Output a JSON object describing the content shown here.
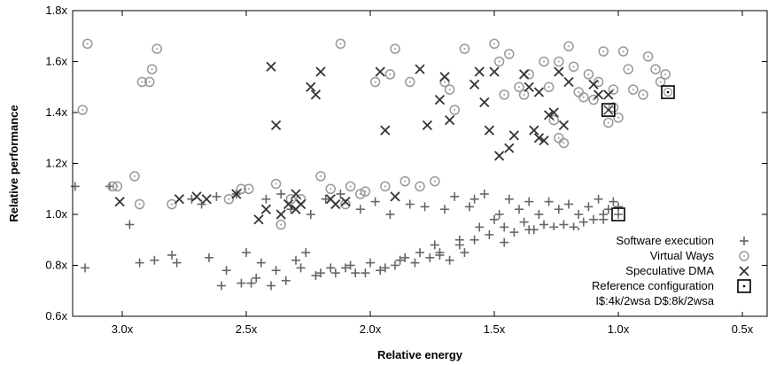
{
  "chart_data": {
    "type": "scatter",
    "title": "",
    "xlabel": "Relative energy",
    "ylabel": "Relative performance",
    "x_reversed": true,
    "xlim": [
      3.2,
      0.4
    ],
    "ylim": [
      0.6,
      1.8
    ],
    "x_ticks": [
      {
        "value": 3.0,
        "label": "3.0x"
      },
      {
        "value": 2.5,
        "label": "2.5x"
      },
      {
        "value": 2.0,
        "label": "2.0x"
      },
      {
        "value": 1.5,
        "label": "1.5x"
      },
      {
        "value": 1.0,
        "label": "1.0x"
      },
      {
        "value": 0.5,
        "label": "0.5x"
      }
    ],
    "y_ticks": [
      {
        "value": 0.6,
        "label": "0.6x"
      },
      {
        "value": 0.8,
        "label": "0.8x"
      },
      {
        "value": 1.0,
        "label": "1.0x"
      },
      {
        "value": 1.2,
        "label": "1.2x"
      },
      {
        "value": 1.4,
        "label": "1.4x"
      },
      {
        "value": 1.6,
        "label": "1.6x"
      },
      {
        "value": 1.8,
        "label": "1.8x"
      }
    ],
    "grid": false,
    "legend_position": "bottom-right",
    "legend_note": "I$:4k/2wsa D$:8k/2wsa",
    "series": [
      {
        "name": "Software execution",
        "marker": "plus",
        "color": "#666666",
        "points": [
          [
            3.19,
            1.11
          ],
          [
            3.15,
            0.79
          ],
          [
            3.05,
            1.11
          ],
          [
            2.97,
            0.96
          ],
          [
            2.93,
            0.81
          ],
          [
            2.87,
            0.82
          ],
          [
            2.8,
            0.84
          ],
          [
            2.78,
            0.81
          ],
          [
            2.72,
            1.06
          ],
          [
            2.68,
            1.04
          ],
          [
            2.65,
            0.83
          ],
          [
            2.62,
            1.07
          ],
          [
            2.6,
            0.72
          ],
          [
            2.58,
            0.78
          ],
          [
            2.54,
            1.08
          ],
          [
            2.52,
            0.73
          ],
          [
            2.5,
            0.85
          ],
          [
            2.48,
            0.73
          ],
          [
            2.46,
            0.75
          ],
          [
            2.44,
            0.81
          ],
          [
            2.42,
            1.06
          ],
          [
            2.4,
            0.72
          ],
          [
            2.38,
            0.78
          ],
          [
            2.36,
            1.08
          ],
          [
            2.34,
            0.74
          ],
          [
            2.32,
            1.02
          ],
          [
            2.3,
            0.82
          ],
          [
            2.28,
            0.79
          ],
          [
            2.26,
            0.85
          ],
          [
            2.24,
            1.0
          ],
          [
            2.22,
            0.76
          ],
          [
            2.2,
            0.77
          ],
          [
            2.18,
            1.06
          ],
          [
            2.16,
            0.79
          ],
          [
            2.14,
            0.77
          ],
          [
            2.12,
            1.08
          ],
          [
            2.1,
            0.79
          ],
          [
            2.08,
            0.8
          ],
          [
            2.06,
            0.77
          ],
          [
            2.04,
            1.02
          ],
          [
            2.02,
            0.77
          ],
          [
            2.0,
            0.81
          ],
          [
            1.98,
            1.05
          ],
          [
            1.96,
            0.78
          ],
          [
            1.94,
            0.79
          ],
          [
            1.92,
            1.0
          ],
          [
            1.9,
            0.8
          ],
          [
            1.88,
            0.82
          ],
          [
            1.86,
            0.83
          ],
          [
            1.84,
            1.04
          ],
          [
            1.82,
            0.81
          ],
          [
            1.8,
            0.85
          ],
          [
            1.78,
            1.03
          ],
          [
            1.76,
            0.83
          ],
          [
            1.74,
            0.88
          ],
          [
            1.72,
            0.84
          ],
          [
            1.7,
            1.02
          ],
          [
            1.68,
            0.82
          ],
          [
            1.66,
            1.07
          ],
          [
            1.64,
            0.88
          ],
          [
            1.62,
            0.85
          ],
          [
            1.6,
            1.03
          ],
          [
            1.58,
            0.9
          ],
          [
            1.56,
            0.95
          ],
          [
            1.54,
            1.08
          ],
          [
            1.52,
            0.92
          ],
          [
            1.5,
            0.98
          ],
          [
            1.48,
            1.0
          ],
          [
            1.46,
            0.95
          ],
          [
            1.44,
            1.06
          ],
          [
            1.42,
            0.93
          ],
          [
            1.4,
            1.02
          ],
          [
            1.38,
            0.97
          ],
          [
            1.36,
            1.05
          ],
          [
            1.34,
            0.94
          ],
          [
            1.32,
            1.0
          ],
          [
            1.3,
            0.96
          ],
          [
            1.28,
            1.05
          ],
          [
            1.26,
            0.95
          ],
          [
            1.24,
            1.02
          ],
          [
            1.22,
            0.96
          ],
          [
            1.2,
            1.04
          ],
          [
            1.18,
            0.95
          ],
          [
            1.16,
            1.0
          ],
          [
            1.14,
            0.97
          ],
          [
            1.12,
            1.03
          ],
          [
            1.1,
            0.98
          ],
          [
            1.08,
            1.06
          ],
          [
            1.06,
            1.0
          ],
          [
            1.04,
            1.02
          ],
          [
            1.02,
            1.05
          ],
          [
            1.0,
            1.03
          ],
          [
            1.72,
            0.85
          ],
          [
            1.64,
            0.9
          ],
          [
            1.58,
            1.06
          ],
          [
            1.46,
            0.89
          ],
          [
            1.36,
            0.94
          ],
          [
            1.26,
            0.9
          ],
          [
            1.16,
            0.93
          ],
          [
            1.06,
            0.98
          ]
        ]
      },
      {
        "name": "Virtual Ways",
        "marker": "circle-dot",
        "color": "#999999",
        "points": [
          [
            3.16,
            1.41
          ],
          [
            3.14,
            1.67
          ],
          [
            3.04,
            1.11
          ],
          [
            3.02,
            1.11
          ],
          [
            2.95,
            1.15
          ],
          [
            2.93,
            1.04
          ],
          [
            2.92,
            1.52
          ],
          [
            2.89,
            1.52
          ],
          [
            2.88,
            1.57
          ],
          [
            2.86,
            1.65
          ],
          [
            2.8,
            1.04
          ],
          [
            2.57,
            1.06
          ],
          [
            2.52,
            1.1
          ],
          [
            2.49,
            1.1
          ],
          [
            2.38,
            1.12
          ],
          [
            2.36,
            0.96
          ],
          [
            2.32,
            1.06
          ],
          [
            2.28,
            1.06
          ],
          [
            2.2,
            1.15
          ],
          [
            2.16,
            1.1
          ],
          [
            2.12,
            1.67
          ],
          [
            2.1,
            1.04
          ],
          [
            2.08,
            1.11
          ],
          [
            2.04,
            1.08
          ],
          [
            2.02,
            1.09
          ],
          [
            1.98,
            1.52
          ],
          [
            1.94,
            1.11
          ],
          [
            1.92,
            1.55
          ],
          [
            1.9,
            1.65
          ],
          [
            1.86,
            1.13
          ],
          [
            1.84,
            1.52
          ],
          [
            1.8,
            1.11
          ],
          [
            1.74,
            1.13
          ],
          [
            1.7,
            1.52
          ],
          [
            1.68,
            1.49
          ],
          [
            1.66,
            1.41
          ],
          [
            1.62,
            1.65
          ],
          [
            1.5,
            1.67
          ],
          [
            1.48,
            1.6
          ],
          [
            1.46,
            1.47
          ],
          [
            1.44,
            1.63
          ],
          [
            1.4,
            1.5
          ],
          [
            1.38,
            1.47
          ],
          [
            1.36,
            1.55
          ],
          [
            1.3,
            1.6
          ],
          [
            1.28,
            1.5
          ],
          [
            1.26,
            1.37
          ],
          [
            1.24,
            1.6
          ],
          [
            1.2,
            1.66
          ],
          [
            1.18,
            1.58
          ],
          [
            1.16,
            1.48
          ],
          [
            1.14,
            1.46
          ],
          [
            1.12,
            1.55
          ],
          [
            1.1,
            1.45
          ],
          [
            1.08,
            1.52
          ],
          [
            1.06,
            1.64
          ],
          [
            1.04,
            1.36
          ],
          [
            1.02,
            1.49
          ],
          [
            1.0,
            1.38
          ],
          [
            0.98,
            1.64
          ],
          [
            0.96,
            1.57
          ],
          [
            0.94,
            1.49
          ],
          [
            0.9,
            1.47
          ],
          [
            0.88,
            1.62
          ],
          [
            0.85,
            1.57
          ],
          [
            0.83,
            1.52
          ],
          [
            0.81,
            1.55
          ],
          [
            1.22,
            1.28
          ],
          [
            1.24,
            1.3
          ],
          [
            1.02,
            1.42
          ]
        ]
      },
      {
        "name": "Speculative DMA",
        "marker": "cross",
        "color": "#333333",
        "points": [
          [
            3.01,
            1.05
          ],
          [
            2.77,
            1.06
          ],
          [
            2.7,
            1.07
          ],
          [
            2.66,
            1.06
          ],
          [
            2.54,
            1.08
          ],
          [
            2.45,
            0.98
          ],
          [
            2.4,
            1.58
          ],
          [
            2.38,
            1.35
          ],
          [
            2.36,
            1.0
          ],
          [
            2.33,
            1.04
          ],
          [
            2.3,
            1.02
          ],
          [
            2.28,
            1.04
          ],
          [
            2.24,
            1.5
          ],
          [
            2.22,
            1.47
          ],
          [
            2.2,
            1.56
          ],
          [
            2.16,
            1.06
          ],
          [
            2.14,
            1.04
          ],
          [
            2.1,
            1.05
          ],
          [
            1.96,
            1.56
          ],
          [
            1.94,
            1.33
          ],
          [
            1.9,
            1.07
          ],
          [
            1.8,
            1.57
          ],
          [
            1.77,
            1.35
          ],
          [
            1.72,
            1.45
          ],
          [
            1.7,
            1.54
          ],
          [
            1.68,
            1.37
          ],
          [
            1.58,
            1.51
          ],
          [
            1.56,
            1.56
          ],
          [
            1.54,
            1.44
          ],
          [
            1.52,
            1.33
          ],
          [
            1.5,
            1.56
          ],
          [
            1.48,
            1.23
          ],
          [
            1.44,
            1.26
          ],
          [
            1.42,
            1.31
          ],
          [
            1.38,
            1.55
          ],
          [
            1.36,
            1.5
          ],
          [
            1.34,
            1.33
          ],
          [
            1.32,
            1.48
          ],
          [
            1.3,
            1.29
          ],
          [
            1.28,
            1.39
          ],
          [
            1.26,
            1.4
          ],
          [
            1.24,
            1.56
          ],
          [
            1.22,
            1.35
          ],
          [
            1.2,
            1.52
          ],
          [
            1.1,
            1.51
          ],
          [
            1.08,
            1.47
          ],
          [
            1.04,
            1.47
          ],
          [
            2.42,
            1.02
          ],
          [
            2.3,
            1.08
          ],
          [
            1.32,
            1.3
          ]
        ]
      },
      {
        "name": "Reference configuration",
        "marker": "square-dot",
        "color": "#000000",
        "points": [
          [
            1.0,
            1.0
          ],
          [
            1.04,
            1.41
          ],
          [
            0.8,
            1.48
          ]
        ]
      }
    ]
  }
}
